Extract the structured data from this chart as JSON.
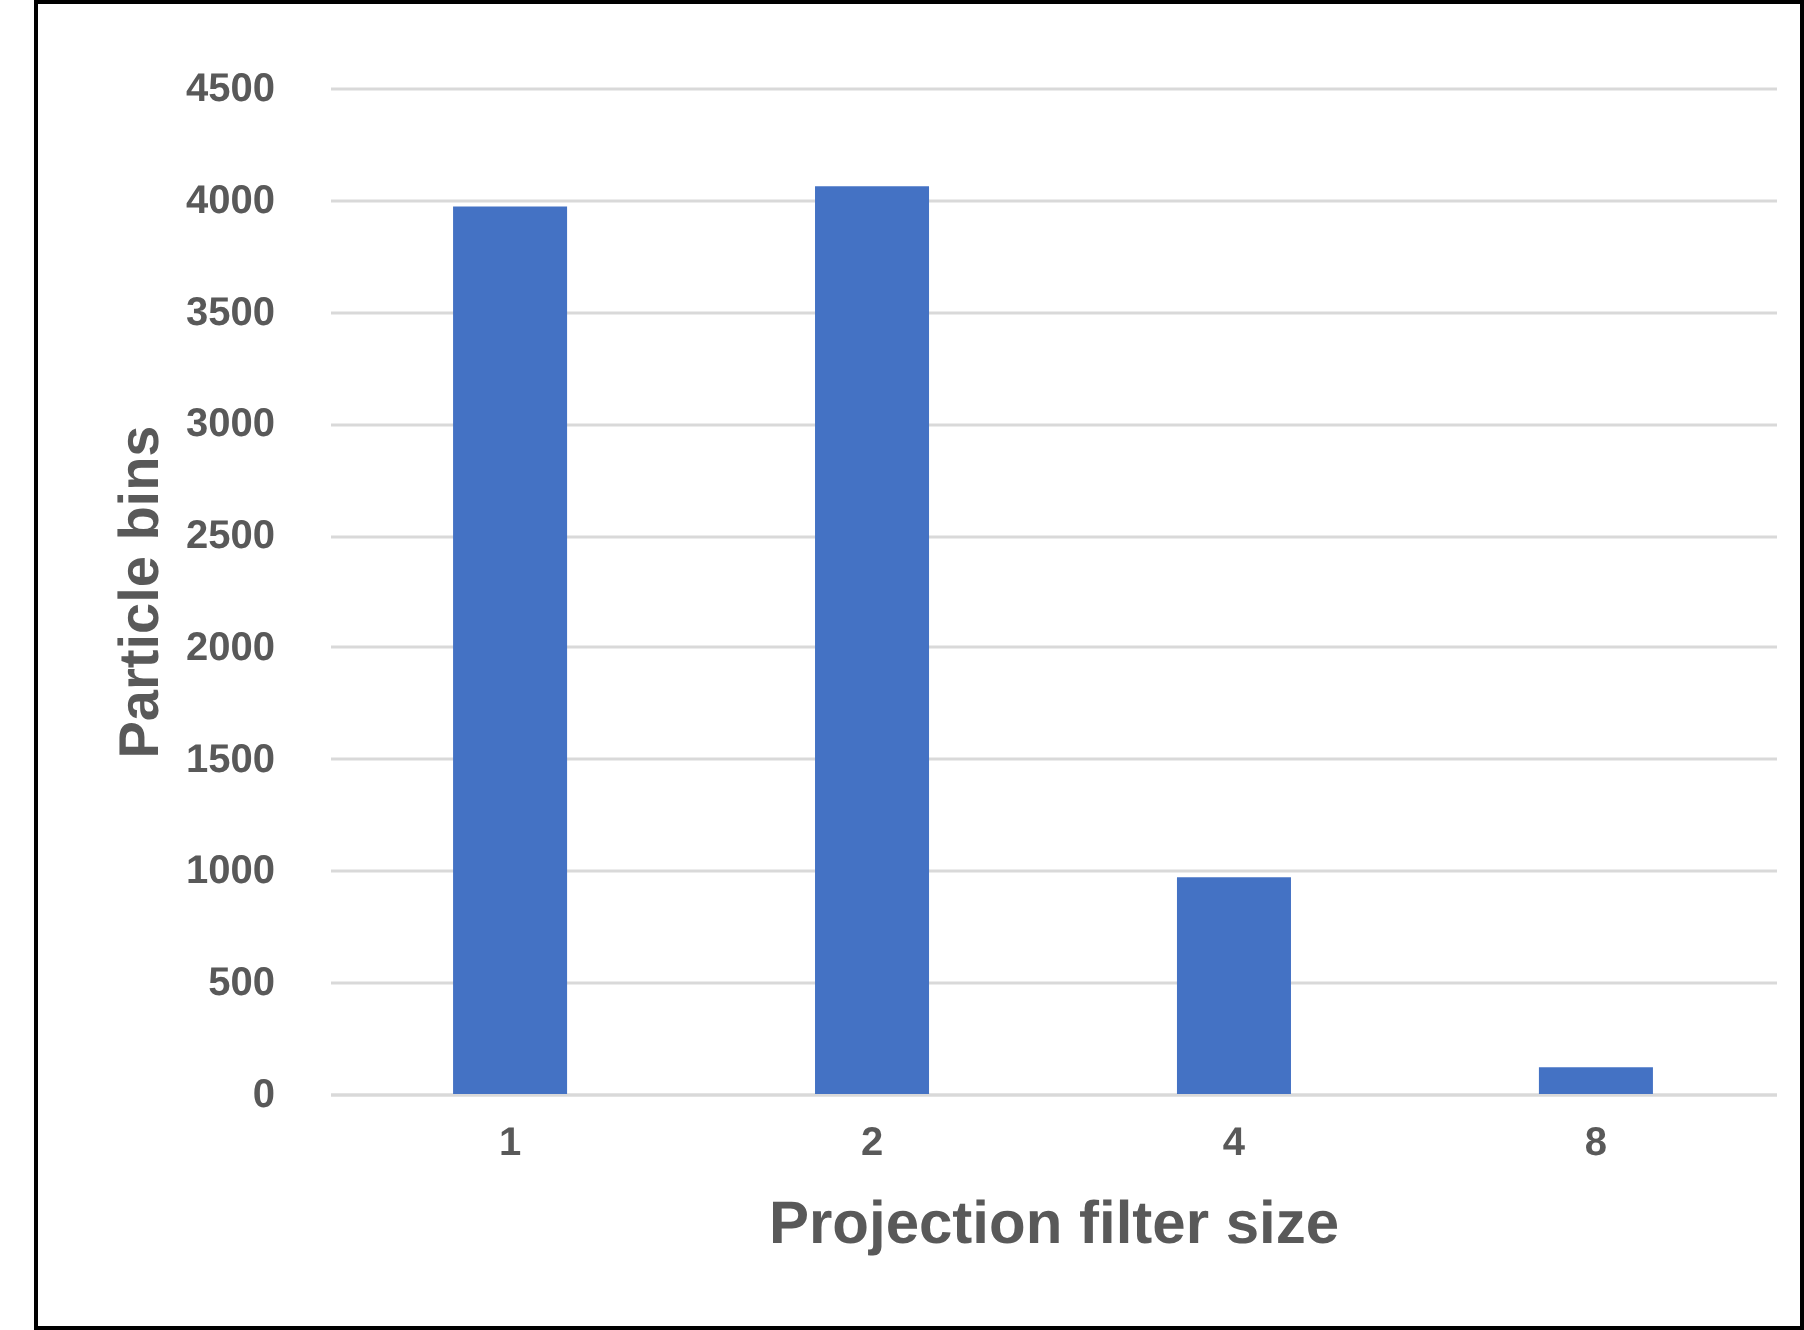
{
  "chart_data": {
    "type": "bar",
    "xlabel": "Projection filter size",
    "ylabel": "Particle bins",
    "categories": [
      "1",
      "2",
      "4",
      "8"
    ],
    "values": [
      3970,
      4060,
      970,
      120
    ],
    "color": "#4472c4",
    "ylim": [
      0,
      4500
    ],
    "yticks": [
      0,
      500,
      1000,
      1500,
      2000,
      2500,
      3000,
      3500,
      4000,
      4500
    ],
    "grid": "y"
  }
}
